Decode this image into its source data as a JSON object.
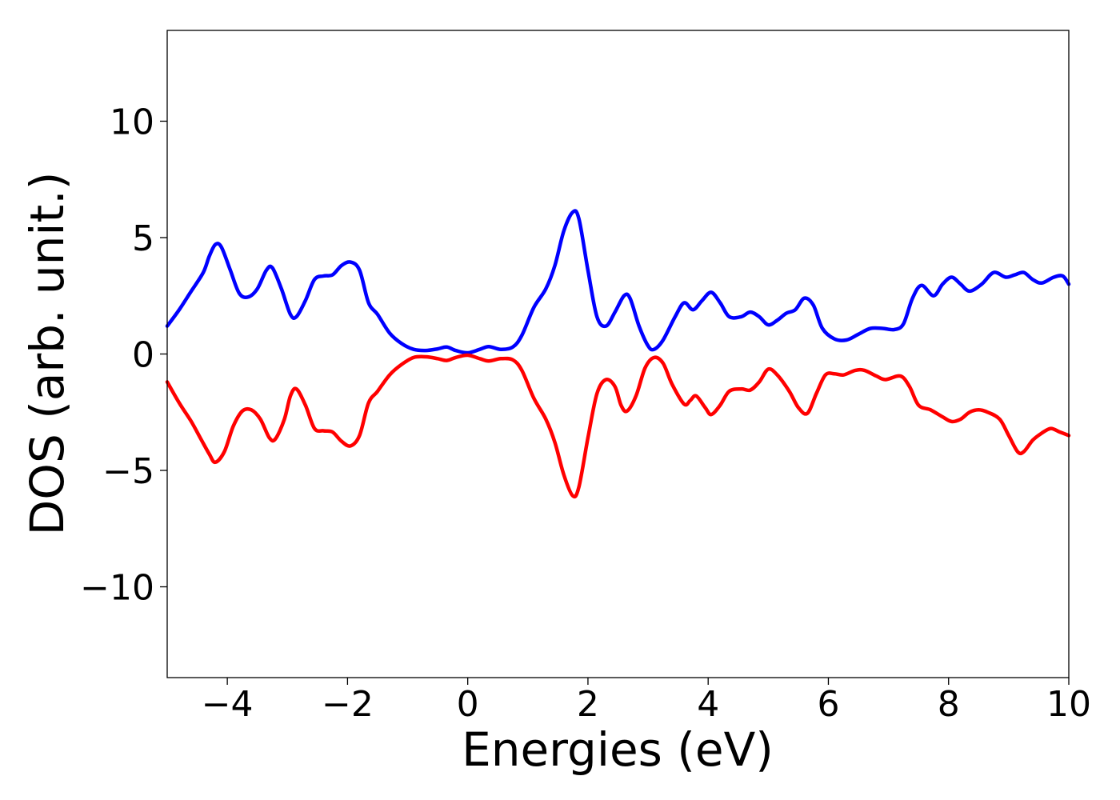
{
  "chart_data": {
    "type": "line",
    "title": "",
    "xlabel": "Energies (eV)",
    "ylabel": "DOS (arb. unit.)",
    "xlim": [
      -5,
      10
    ],
    "ylim": [
      -13.9,
      13.9
    ],
    "xticks": [
      -4,
      -2,
      0,
      2,
      4,
      6,
      8,
      10
    ],
    "xtick_labels": [
      "−4",
      "−2",
      "0",
      "2",
      "4",
      "6",
      "8",
      "10"
    ],
    "yticks": [
      -10,
      -5,
      0,
      5,
      10
    ],
    "ytick_labels": [
      "−10",
      "−5",
      "0",
      "5",
      "10"
    ],
    "grid": false,
    "legend": "none",
    "series": [
      {
        "color": "#0000ff",
        "points": [
          [
            -5.0,
            1.2
          ],
          [
            -4.8,
            1.9
          ],
          [
            -4.6,
            2.7
          ],
          [
            -4.4,
            3.5
          ],
          [
            -4.3,
            4.2
          ],
          [
            -4.2,
            4.7
          ],
          [
            -4.1,
            4.6
          ],
          [
            -3.95,
            3.6
          ],
          [
            -3.8,
            2.6
          ],
          [
            -3.65,
            2.45
          ],
          [
            -3.5,
            2.8
          ],
          [
            -3.35,
            3.6
          ],
          [
            -3.25,
            3.7
          ],
          [
            -3.1,
            2.8
          ],
          [
            -2.95,
            1.7
          ],
          [
            -2.85,
            1.6
          ],
          [
            -2.7,
            2.3
          ],
          [
            -2.55,
            3.2
          ],
          [
            -2.4,
            3.35
          ],
          [
            -2.25,
            3.4
          ],
          [
            -2.1,
            3.8
          ],
          [
            -1.95,
            3.95
          ],
          [
            -1.8,
            3.6
          ],
          [
            -1.65,
            2.2
          ],
          [
            -1.5,
            1.7
          ],
          [
            -1.3,
            0.9
          ],
          [
            -1.1,
            0.45
          ],
          [
            -0.9,
            0.2
          ],
          [
            -0.7,
            0.15
          ],
          [
            -0.5,
            0.22
          ],
          [
            -0.35,
            0.3
          ],
          [
            -0.2,
            0.15
          ],
          [
            0.0,
            0.05
          ],
          [
            0.2,
            0.2
          ],
          [
            0.35,
            0.32
          ],
          [
            0.55,
            0.2
          ],
          [
            0.75,
            0.3
          ],
          [
            0.9,
            0.8
          ],
          [
            1.1,
            2.0
          ],
          [
            1.3,
            2.8
          ],
          [
            1.45,
            3.8
          ],
          [
            1.6,
            5.3
          ],
          [
            1.75,
            6.1
          ],
          [
            1.85,
            5.8
          ],
          [
            2.0,
            3.6
          ],
          [
            2.15,
            1.6
          ],
          [
            2.3,
            1.2
          ],
          [
            2.45,
            1.8
          ],
          [
            2.6,
            2.5
          ],
          [
            2.7,
            2.4
          ],
          [
            2.85,
            1.2
          ],
          [
            3.0,
            0.35
          ],
          [
            3.1,
            0.2
          ],
          [
            3.25,
            0.6
          ],
          [
            3.45,
            1.6
          ],
          [
            3.6,
            2.2
          ],
          [
            3.75,
            1.9
          ],
          [
            3.9,
            2.3
          ],
          [
            4.05,
            2.65
          ],
          [
            4.2,
            2.2
          ],
          [
            4.35,
            1.6
          ],
          [
            4.55,
            1.6
          ],
          [
            4.7,
            1.8
          ],
          [
            4.85,
            1.6
          ],
          [
            5.0,
            1.25
          ],
          [
            5.15,
            1.45
          ],
          [
            5.3,
            1.75
          ],
          [
            5.45,
            1.9
          ],
          [
            5.6,
            2.4
          ],
          [
            5.75,
            2.1
          ],
          [
            5.9,
            1.1
          ],
          [
            6.1,
            0.65
          ],
          [
            6.3,
            0.6
          ],
          [
            6.5,
            0.85
          ],
          [
            6.7,
            1.1
          ],
          [
            6.9,
            1.1
          ],
          [
            7.1,
            1.05
          ],
          [
            7.25,
            1.3
          ],
          [
            7.4,
            2.4
          ],
          [
            7.55,
            2.95
          ],
          [
            7.75,
            2.5
          ],
          [
            7.9,
            3.0
          ],
          [
            8.05,
            3.3
          ],
          [
            8.2,
            3.0
          ],
          [
            8.35,
            2.7
          ],
          [
            8.55,
            3.0
          ],
          [
            8.75,
            3.5
          ],
          [
            8.95,
            3.3
          ],
          [
            9.1,
            3.4
          ],
          [
            9.25,
            3.5
          ],
          [
            9.4,
            3.2
          ],
          [
            9.55,
            3.05
          ],
          [
            9.75,
            3.3
          ],
          [
            9.9,
            3.35
          ],
          [
            10.0,
            3.0
          ]
        ]
      },
      {
        "color": "#ff0000",
        "points": [
          [
            -5.0,
            -1.2
          ],
          [
            -4.8,
            -2.1
          ],
          [
            -4.6,
            -2.9
          ],
          [
            -4.45,
            -3.6
          ],
          [
            -4.3,
            -4.3
          ],
          [
            -4.2,
            -4.65
          ],
          [
            -4.05,
            -4.2
          ],
          [
            -3.9,
            -3.1
          ],
          [
            -3.75,
            -2.45
          ],
          [
            -3.6,
            -2.4
          ],
          [
            -3.45,
            -2.8
          ],
          [
            -3.3,
            -3.6
          ],
          [
            -3.2,
            -3.65
          ],
          [
            -3.05,
            -2.8
          ],
          [
            -2.95,
            -1.8
          ],
          [
            -2.85,
            -1.5
          ],
          [
            -2.7,
            -2.2
          ],
          [
            -2.55,
            -3.2
          ],
          [
            -2.4,
            -3.3
          ],
          [
            -2.25,
            -3.35
          ],
          [
            -2.1,
            -3.75
          ],
          [
            -1.95,
            -3.95
          ],
          [
            -1.8,
            -3.5
          ],
          [
            -1.65,
            -2.1
          ],
          [
            -1.5,
            -1.6
          ],
          [
            -1.3,
            -0.9
          ],
          [
            -1.1,
            -0.45
          ],
          [
            -0.9,
            -0.15
          ],
          [
            -0.7,
            -0.12
          ],
          [
            -0.5,
            -0.2
          ],
          [
            -0.35,
            -0.28
          ],
          [
            -0.2,
            -0.15
          ],
          [
            0.0,
            -0.05
          ],
          [
            0.2,
            -0.2
          ],
          [
            0.35,
            -0.3
          ],
          [
            0.55,
            -0.2
          ],
          [
            0.75,
            -0.25
          ],
          [
            0.9,
            -0.7
          ],
          [
            1.1,
            -1.9
          ],
          [
            1.3,
            -2.8
          ],
          [
            1.45,
            -3.8
          ],
          [
            1.6,
            -5.2
          ],
          [
            1.75,
            -6.1
          ],
          [
            1.85,
            -5.7
          ],
          [
            2.0,
            -3.6
          ],
          [
            2.15,
            -1.7
          ],
          [
            2.3,
            -1.1
          ],
          [
            2.45,
            -1.4
          ],
          [
            2.55,
            -2.2
          ],
          [
            2.65,
            -2.45
          ],
          [
            2.8,
            -1.8
          ],
          [
            2.95,
            -0.6
          ],
          [
            3.1,
            -0.15
          ],
          [
            3.25,
            -0.4
          ],
          [
            3.4,
            -1.3
          ],
          [
            3.6,
            -2.15
          ],
          [
            3.7,
            -2.0
          ],
          [
            3.8,
            -1.8
          ],
          [
            3.95,
            -2.3
          ],
          [
            4.05,
            -2.6
          ],
          [
            4.2,
            -2.2
          ],
          [
            4.35,
            -1.6
          ],
          [
            4.55,
            -1.5
          ],
          [
            4.7,
            -1.55
          ],
          [
            4.85,
            -1.2
          ],
          [
            5.0,
            -0.65
          ],
          [
            5.15,
            -0.9
          ],
          [
            5.35,
            -1.6
          ],
          [
            5.5,
            -2.3
          ],
          [
            5.65,
            -2.55
          ],
          [
            5.8,
            -1.7
          ],
          [
            5.95,
            -0.9
          ],
          [
            6.1,
            -0.85
          ],
          [
            6.25,
            -0.9
          ],
          [
            6.45,
            -0.7
          ],
          [
            6.6,
            -0.7
          ],
          [
            6.8,
            -0.95
          ],
          [
            6.95,
            -1.1
          ],
          [
            7.2,
            -0.95
          ],
          [
            7.35,
            -1.4
          ],
          [
            7.5,
            -2.2
          ],
          [
            7.7,
            -2.4
          ],
          [
            7.9,
            -2.7
          ],
          [
            8.05,
            -2.9
          ],
          [
            8.2,
            -2.8
          ],
          [
            8.35,
            -2.5
          ],
          [
            8.5,
            -2.4
          ],
          [
            8.65,
            -2.5
          ],
          [
            8.85,
            -2.8
          ],
          [
            9.0,
            -3.5
          ],
          [
            9.15,
            -4.2
          ],
          [
            9.25,
            -4.2
          ],
          [
            9.4,
            -3.7
          ],
          [
            9.55,
            -3.4
          ],
          [
            9.7,
            -3.2
          ],
          [
            9.85,
            -3.35
          ],
          [
            10.0,
            -3.5
          ]
        ]
      }
    ]
  }
}
